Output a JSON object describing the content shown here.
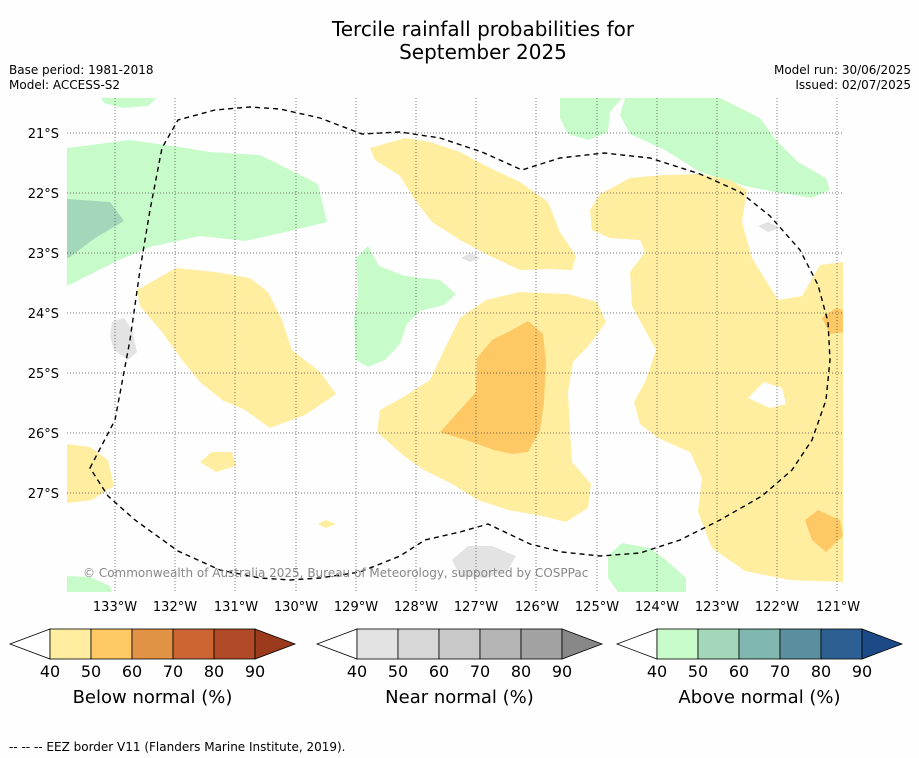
{
  "title": {
    "line1": "Tercile rainfall probabilities for",
    "line2": "September 2025"
  },
  "meta_left": {
    "base_period": "Base period: 1981-2018",
    "model": "Model: ACCESS-S2"
  },
  "meta_right": {
    "model_run": "Model run: 30/06/2025",
    "issued": "Issued: 02/07/2025"
  },
  "map": {
    "longitude_ticks": [
      "133°W",
      "132°W",
      "131°W",
      "130°W",
      "129°W",
      "128°W",
      "127°W",
      "126°W",
      "125°W",
      "124°W",
      "123°W",
      "122°W",
      "121°W"
    ],
    "latitude_ticks": [
      "21°S",
      "22°S",
      "23°S",
      "24°S",
      "25°S",
      "26°S",
      "27°S"
    ],
    "credit": "© Commonwealth of Australia 2025, Bureau of Meteorology, supported by COSPPac",
    "grid": "on (dotted)",
    "border_style": "dashed"
  },
  "colorbars": [
    {
      "title": "Below normal (%)",
      "ticks": [
        "40",
        "50",
        "60",
        "70",
        "80",
        "90"
      ],
      "colors": [
        "#ffeda0",
        "#fec965",
        "#e29244",
        "#cc6433",
        "#b14a26",
        "#9b3a1c"
      ]
    },
    {
      "title": "Near normal (%)",
      "ticks": [
        "40",
        "50",
        "60",
        "70",
        "80",
        "90"
      ],
      "colors": [
        "#e3e3e3",
        "#d7d7d7",
        "#c8c8c8",
        "#b5b5b5",
        "#a2a2a2",
        "#888888"
      ]
    },
    {
      "title": "Above normal (%)",
      "ticks": [
        "40",
        "50",
        "60",
        "70",
        "80",
        "90"
      ],
      "colors": [
        "#c7fcca",
        "#a3d7b9",
        "#80b7ae",
        "#5b8f9e",
        "#2e5f93",
        "#1b4a86"
      ]
    }
  ],
  "footer": "--  --  -- EEZ border V11 (Flanders Marine Institute, 2019)."
}
